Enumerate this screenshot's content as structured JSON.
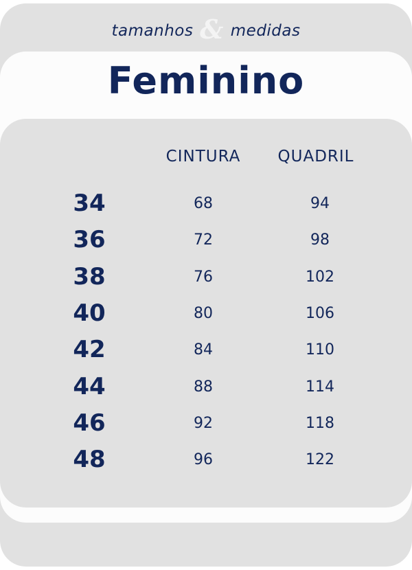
{
  "header": {
    "subtitle_left": "tamanhos",
    "ampersand": "&",
    "subtitle_right": "medidas",
    "title": "Feminino"
  },
  "table": {
    "columns": [
      "CINTURA",
      "QUADRIL"
    ],
    "rows": [
      {
        "size": "34",
        "cintura": "68",
        "quadril": "94"
      },
      {
        "size": "36",
        "cintura": "72",
        "quadril": "98"
      },
      {
        "size": "38",
        "cintura": "76",
        "quadril": "102"
      },
      {
        "size": "40",
        "cintura": "80",
        "quadril": "106"
      },
      {
        "size": "42",
        "cintura": "84",
        "quadril": "110"
      },
      {
        "size": "44",
        "cintura": "88",
        "quadril": "114"
      },
      {
        "size": "46",
        "cintura": "92",
        "quadril": "118"
      },
      {
        "size": "48",
        "cintura": "96",
        "quadril": "122"
      }
    ]
  },
  "colors": {
    "navy": "#12265a",
    "gray": "#e1e1e1",
    "white": "#fcfcfc"
  }
}
